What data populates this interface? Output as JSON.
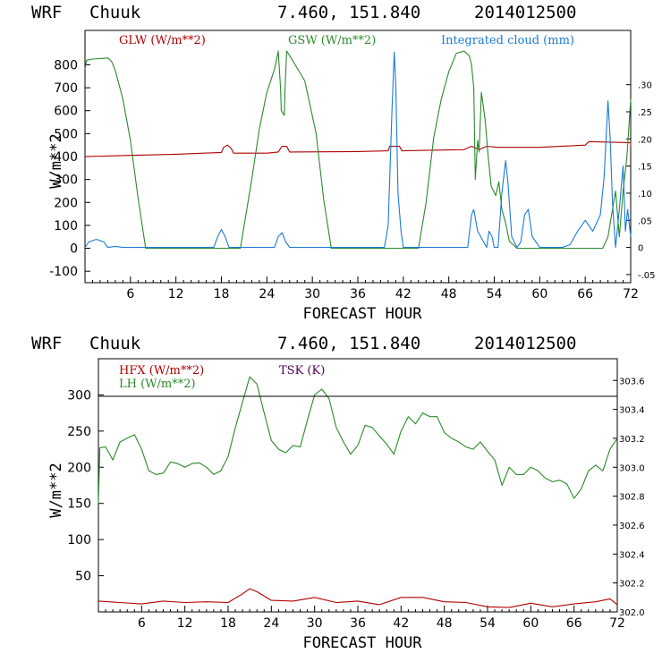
{
  "colors": {
    "red": "#b00000",
    "green": "#2a8a2a",
    "blue": "#1a7ad6",
    "purple": "#500050",
    "black": "#000000"
  },
  "charts": [
    {
      "header": {
        "model": "WRF",
        "station": "Chuuk",
        "coords": "7.460, 151.840",
        "date": "2014012500"
      },
      "xlabel": "FORECAST HOUR",
      "ylabel": "W/m**2",
      "yticks": [
        "800",
        "700",
        "600",
        "500",
        "400",
        "300",
        "200",
        "100",
        "0",
        "-100"
      ],
      "rticks": [
        ".30",
        ".25",
        ".20",
        ".15",
        ".10",
        ".05",
        "0",
        "-.05"
      ],
      "xticks": [
        "6",
        "12",
        "18",
        "24",
        "30",
        "36",
        "42",
        "48",
        "54",
        "60",
        "66",
        "72"
      ],
      "legend": [
        "GLW (W/m**2)",
        "GSW (W/m**2)",
        "Integrated cloud (mm)"
      ]
    },
    {
      "header": {
        "model": "WRF",
        "station": "Chuuk",
        "coords": "7.460, 151.840",
        "date": "2014012500"
      },
      "xlabel": "FORECAST HOUR",
      "ylabel": "W/m**2",
      "yticks": [
        "300",
        "250",
        "200",
        "150",
        "100",
        "50"
      ],
      "rticks": [
        "303.6",
        "303.4",
        "303.2",
        "303.0",
        "302.8",
        "302.6",
        "302.4",
        "302.2",
        "302.0"
      ],
      "xticks": [
        "6",
        "12",
        "18",
        "24",
        "30",
        "36",
        "42",
        "48",
        "54",
        "60",
        "66",
        "72"
      ],
      "legend": [
        "HFX (W/m**2)",
        "LH (W/m**2)",
        "TSK (K)"
      ]
    }
  ],
  "chart_data": [
    {
      "type": "line",
      "xlabel": "FORECAST HOUR",
      "ylabel": "W/m**2",
      "xlim": [
        0,
        72
      ],
      "ylim": [
        -150,
        950
      ],
      "y2lim": [
        -0.065,
        0.4
      ],
      "grid": false,
      "legend_position": "top",
      "series": [
        {
          "name": "GLW (W/m**2)",
          "axis": "left",
          "color": "red",
          "points": [
            [
              0,
              400
            ],
            [
              6,
              405
            ],
            [
              12,
              410
            ],
            [
              18,
              418
            ],
            [
              18.3,
              440
            ],
            [
              18.8,
              450
            ],
            [
              19.3,
              435
            ],
            [
              19.6,
              415
            ],
            [
              24,
              415
            ],
            [
              25.5,
              420
            ],
            [
              26,
              445
            ],
            [
              26.6,
              445
            ],
            [
              27,
              420
            ],
            [
              36,
              422
            ],
            [
              40,
              425
            ],
            [
              40.2,
              445
            ],
            [
              41.5,
              445
            ],
            [
              41.8,
              425
            ],
            [
              50,
              430
            ],
            [
              51,
              445
            ],
            [
              52,
              430
            ],
            [
              53,
              445
            ],
            [
              54.5,
              440
            ],
            [
              60,
              440
            ],
            [
              66,
              450
            ],
            [
              66.5,
              465
            ],
            [
              72,
              460
            ],
            [
              72,
              445
            ]
          ]
        },
        {
          "name": "GSW (W/m**2)",
          "axis": "left",
          "color": "green",
          "points": [
            [
              0,
              780
            ],
            [
              0.2,
              820
            ],
            [
              1,
              825
            ],
            [
              3,
              830
            ],
            [
              3.5,
              815
            ],
            [
              4,
              775
            ],
            [
              5,
              650
            ],
            [
              6,
              470
            ],
            [
              7,
              220
            ],
            [
              8,
              0
            ],
            [
              20.5,
              0
            ],
            [
              22,
              300
            ],
            [
              23,
              520
            ],
            [
              24,
              680
            ],
            [
              25,
              780
            ],
            [
              25.5,
              860
            ],
            [
              25.8,
              700
            ],
            [
              25.9,
              600
            ],
            [
              26.3,
              580
            ],
            [
              26.4,
              700
            ],
            [
              26.6,
              860
            ],
            [
              27,
              840
            ],
            [
              29,
              730
            ],
            [
              30.5,
              500
            ],
            [
              31.5,
              210
            ],
            [
              32.5,
              0
            ],
            [
              44,
              0
            ],
            [
              45,
              200
            ],
            [
              46,
              480
            ],
            [
              47,
              650
            ],
            [
              48,
              770
            ],
            [
              49,
              850
            ],
            [
              50,
              860
            ],
            [
              50.7,
              840
            ],
            [
              51,
              800
            ],
            [
              51.3,
              700
            ],
            [
              51.5,
              300
            ],
            [
              51.8,
              470
            ],
            [
              52,
              420
            ],
            [
              52.3,
              680
            ],
            [
              52.8,
              560
            ],
            [
              53.2,
              400
            ],
            [
              53.6,
              270
            ],
            [
              54.2,
              230
            ],
            [
              54.6,
              290
            ],
            [
              55,
              170
            ],
            [
              55.5,
              110
            ],
            [
              56,
              30
            ],
            [
              57,
              0
            ],
            [
              68.3,
              0
            ],
            [
              69,
              50
            ],
            [
              69.5,
              150
            ],
            [
              70,
              250
            ],
            [
              70.5,
              50
            ],
            [
              71,
              250
            ],
            [
              71.5,
              400
            ],
            [
              72,
              650
            ]
          ]
        },
        {
          "name": "Integrated cloud (mm)",
          "axis": "right",
          "color": "blue",
          "points": [
            [
              0,
              0.0
            ],
            [
              0.5,
              0.01
            ],
            [
              1.5,
              0.015
            ],
            [
              2.5,
              0.01
            ],
            [
              3,
              0.0
            ],
            [
              4,
              0.002
            ],
            [
              5,
              0.0
            ],
            [
              12,
              0.0
            ],
            [
              17,
              0.0
            ],
            [
              17.5,
              0.02
            ],
            [
              18,
              0.033
            ],
            [
              18.5,
              0.02
            ],
            [
              19,
              0.0
            ],
            [
              25,
              0.0
            ],
            [
              25.5,
              0.02
            ],
            [
              26,
              0.027
            ],
            [
              26.5,
              0.01
            ],
            [
              27,
              0.0
            ],
            [
              39.5,
              0.0
            ],
            [
              40,
              0.04
            ],
            [
              40.5,
              0.25
            ],
            [
              40.8,
              0.36
            ],
            [
              41,
              0.3
            ],
            [
              41.3,
              0.1
            ],
            [
              41.7,
              0.03
            ],
            [
              42,
              0.0
            ],
            [
              50.5,
              0.0
            ],
            [
              51,
              0.06
            ],
            [
              51.3,
              0.07
            ],
            [
              51.8,
              0.03
            ],
            [
              52.2,
              0.02
            ],
            [
              53,
              0.0
            ],
            [
              53.3,
              0.03
            ],
            [
              53.7,
              0.02
            ],
            [
              54,
              0.0
            ],
            [
              54.5,
              0.0
            ],
            [
              55,
              0.1
            ],
            [
              55.5,
              0.16
            ],
            [
              55.8,
              0.12
            ],
            [
              56.3,
              0.02
            ],
            [
              57,
              0.0
            ],
            [
              57.5,
              0.01
            ],
            [
              58,
              0.06
            ],
            [
              58.5,
              0.07
            ],
            [
              59,
              0.02
            ],
            [
              60,
              0.0
            ],
            [
              63,
              0.0
            ],
            [
              64,
              0.005
            ],
            [
              65,
              0.03
            ],
            [
              66,
              0.05
            ],
            [
              67,
              0.03
            ],
            [
              68,
              0.06
            ],
            [
              68.5,
              0.13
            ],
            [
              69,
              0.27
            ],
            [
              69.3,
              0.2
            ],
            [
              69.6,
              0.08
            ],
            [
              70,
              0.0
            ],
            [
              70.5,
              0.07
            ],
            [
              71,
              0.15
            ],
            [
              71.3,
              0.03
            ],
            [
              71.6,
              0.07
            ],
            [
              72,
              0.02
            ]
          ]
        }
      ]
    },
    {
      "type": "line",
      "xlabel": "FORECAST HOUR",
      "ylabel": "W/m**2",
      "xlim": [
        0,
        72
      ],
      "ylim": [
        0,
        350
      ],
      "y2lim": [
        302.0,
        303.75
      ],
      "grid": false,
      "legend_position": "top-left",
      "series": [
        {
          "name": "HFX (W/m**2)",
          "axis": "left",
          "color": "red",
          "points": [
            [
              0,
              15
            ],
            [
              3,
              13
            ],
            [
              6,
              11
            ],
            [
              9,
              15
            ],
            [
              12,
              13
            ],
            [
              15,
              14
            ],
            [
              18,
              13
            ],
            [
              20,
              25
            ],
            [
              21,
              32
            ],
            [
              22,
              28
            ],
            [
              24,
              16
            ],
            [
              27,
              15
            ],
            [
              30,
              20
            ],
            [
              33,
              13
            ],
            [
              36,
              15
            ],
            [
              39,
              10
            ],
            [
              42,
              20
            ],
            [
              45,
              20
            ],
            [
              48,
              14
            ],
            [
              51,
              13
            ],
            [
              54,
              7
            ],
            [
              57,
              6
            ],
            [
              60,
              12
            ],
            [
              63,
              7
            ],
            [
              66,
              11
            ],
            [
              69,
              14
            ],
            [
              71,
              18
            ],
            [
              72,
              10
            ]
          ]
        },
        {
          "name": "LH (W/m**2)",
          "axis": "left",
          "color": "green",
          "points": [
            [
              0,
              150
            ],
            [
              0.2,
              227
            ],
            [
              1,
              228
            ],
            [
              2,
              210
            ],
            [
              3,
              235
            ],
            [
              4,
              240
            ],
            [
              5,
              245
            ],
            [
              6,
              225
            ],
            [
              7,
              195
            ],
            [
              8,
              190
            ],
            [
              9,
              192
            ],
            [
              10,
              207
            ],
            [
              11,
              205
            ],
            [
              12,
              200
            ],
            [
              13,
              205
            ],
            [
              14,
              206
            ],
            [
              15,
              200
            ],
            [
              16,
              190
            ],
            [
              17,
              195
            ],
            [
              18,
              215
            ],
            [
              19,
              255
            ],
            [
              20,
              290
            ],
            [
              21,
              325
            ],
            [
              22,
              315
            ],
            [
              23,
              275
            ],
            [
              24,
              237
            ],
            [
              25,
              225
            ],
            [
              26,
              220
            ],
            [
              27,
              230
            ],
            [
              28,
              228
            ],
            [
              29,
              265
            ],
            [
              30,
              300
            ],
            [
              31,
              308
            ],
            [
              32,
              295
            ],
            [
              33,
              255
            ],
            [
              34,
              235
            ],
            [
              35,
              218
            ],
            [
              36,
              230
            ],
            [
              37,
              258
            ],
            [
              38,
              255
            ],
            [
              39,
              243
            ],
            [
              40,
              232
            ],
            [
              41,
              218
            ],
            [
              42,
              250
            ],
            [
              43,
              270
            ],
            [
              44,
              260
            ],
            [
              45,
              275
            ],
            [
              46,
              270
            ],
            [
              47,
              270
            ],
            [
              48,
              248
            ],
            [
              49,
              240
            ],
            [
              50,
              235
            ],
            [
              51,
              228
            ],
            [
              52,
              225
            ],
            [
              53,
              235
            ],
            [
              54,
              222
            ],
            [
              55,
              210
            ],
            [
              56,
              175
            ],
            [
              57,
              200
            ],
            [
              58,
              190
            ],
            [
              59,
              190
            ],
            [
              60,
              200
            ],
            [
              61,
              195
            ],
            [
              62,
              185
            ],
            [
              63,
              180
            ],
            [
              64,
              182
            ],
            [
              65,
              177
            ],
            [
              66,
              157
            ],
            [
              67,
              170
            ],
            [
              68,
              195
            ],
            [
              69,
              203
            ],
            [
              70,
              195
            ],
            [
              71,
              225
            ],
            [
              72,
              240
            ]
          ]
        },
        {
          "name": "TSK (K)",
          "axis": "right",
          "color": "black",
          "points": [
            [
              0,
              303.49
            ],
            [
              72,
              303.49
            ]
          ]
        }
      ]
    }
  ]
}
